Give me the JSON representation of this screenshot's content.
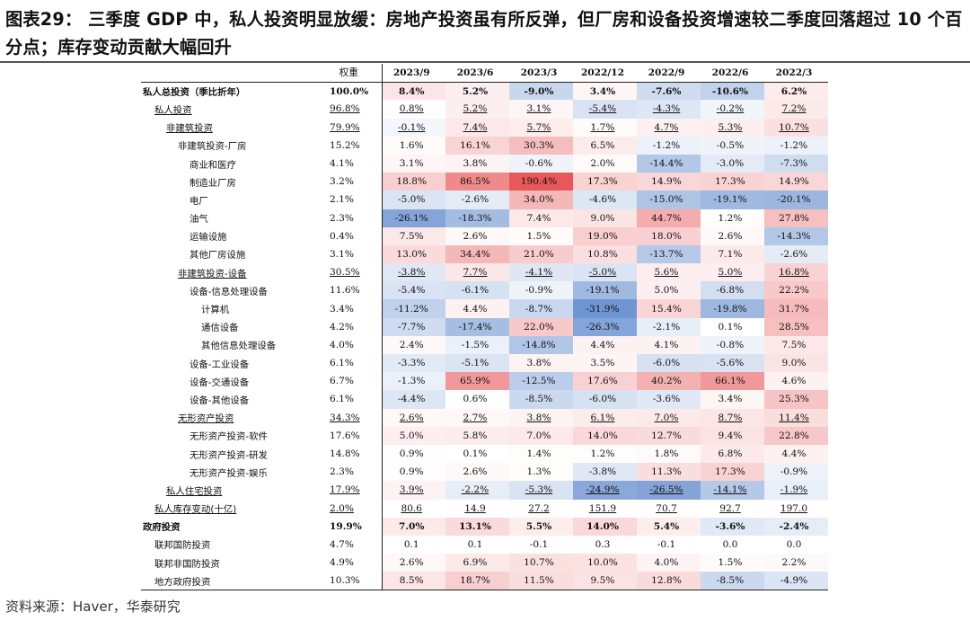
{
  "title": "图表29：  三季度 GDP 中，私人投资明显放缓：房地产投资虽有所反弹，但厂房和设备投资增速较二季度回落超过 10 个百分点；库存变动贡献大幅回升",
  "source": "资料来源：Haver，华泰研究",
  "table": {
    "columns": [
      "",
      "权重",
      "2023/9",
      "2023/6",
      "2023/3",
      "2022/12",
      "2022/9",
      "2022/6",
      "2022/3"
    ],
    "colors": {
      "neg_strong": "#6f95d2",
      "pos_strong": "#e8585a",
      "neutral": "#ffffff"
    },
    "rows": [
      {
        "label": "私人总投资（季比折年）",
        "indent": 0,
        "bold": true,
        "ul": false,
        "weight": "100.0%",
        "values": [
          "8.4%",
          "5.2%",
          "-9.0%",
          "3.4%",
          "-7.6%",
          "-10.6%",
          "6.2%"
        ]
      },
      {
        "label": "私人投资",
        "indent": 1,
        "bold": false,
        "ul": true,
        "weight": "96.8%",
        "values": [
          "0.8%",
          "5.2%",
          "3.1%",
          "-5.4%",
          "-4.3%",
          "-0.2%",
          "7.2%"
        ]
      },
      {
        "label": "非建筑投资",
        "indent": 2,
        "bold": false,
        "ul": true,
        "weight": "79.9%",
        "values": [
          "-0.1%",
          "7.4%",
          "5.7%",
          "1.7%",
          "4.7%",
          "5.3%",
          "10.7%"
        ]
      },
      {
        "label": "非建筑投资-厂房",
        "indent": 3,
        "bold": false,
        "ul": false,
        "weight": "15.2%",
        "values": [
          "1.6%",
          "16.1%",
          "30.3%",
          "6.5%",
          "-1.2%",
          "-0.5%",
          "-1.2%"
        ]
      },
      {
        "label": "商业和医疗",
        "indent": 4,
        "bold": false,
        "ul": false,
        "weight": "4.1%",
        "values": [
          "3.1%",
          "3.8%",
          "-0.6%",
          "2.0%",
          "-14.4%",
          "-3.0%",
          "-7.3%"
        ]
      },
      {
        "label": "制造业厂房",
        "indent": 4,
        "bold": false,
        "ul": false,
        "weight": "3.2%",
        "values": [
          "18.8%",
          "86.5%",
          "190.4%",
          "17.3%",
          "14.9%",
          "17.3%",
          "14.9%"
        ]
      },
      {
        "label": "电厂",
        "indent": 4,
        "bold": false,
        "ul": false,
        "weight": "2.1%",
        "values": [
          "-5.0%",
          "-2.6%",
          "34.0%",
          "-4.6%",
          "-15.0%",
          "-19.1%",
          "-20.1%"
        ]
      },
      {
        "label": "油气",
        "indent": 4,
        "bold": false,
        "ul": false,
        "weight": "2.3%",
        "values": [
          "-26.1%",
          "-18.3%",
          "7.4%",
          "9.0%",
          "44.7%",
          "1.2%",
          "27.8%"
        ]
      },
      {
        "label": "运输设施",
        "indent": 4,
        "bold": false,
        "ul": false,
        "weight": "0.4%",
        "values": [
          "7.5%",
          "2.6%",
          "1.5%",
          "19.0%",
          "18.0%",
          "2.6%",
          "-14.3%"
        ]
      },
      {
        "label": "其他厂房设施",
        "indent": 4,
        "bold": false,
        "ul": false,
        "weight": "3.1%",
        "values": [
          "13.0%",
          "34.4%",
          "21.0%",
          "10.8%",
          "-13.7%",
          "7.1%",
          "-2.6%"
        ]
      },
      {
        "label": "非建筑投资-设备",
        "indent": 3,
        "bold": false,
        "ul": true,
        "weight": "30.5%",
        "values": [
          "-3.8%",
          "7.7%",
          "-4.1%",
          "-5.0%",
          "5.6%",
          "5.0%",
          "16.8%"
        ]
      },
      {
        "label": "设备-信息处理设备",
        "indent": 4,
        "bold": false,
        "ul": false,
        "weight": "11.6%",
        "values": [
          "-5.4%",
          "-6.1%",
          "-0.9%",
          "-19.1%",
          "5.0%",
          "-6.8%",
          "22.2%"
        ]
      },
      {
        "label": "计算机",
        "indent": 5,
        "bold": false,
        "ul": false,
        "weight": "3.4%",
        "values": [
          "-11.2%",
          "4.4%",
          "-8.7%",
          "-31.9%",
          "15.4%",
          "-19.8%",
          "31.7%"
        ]
      },
      {
        "label": "通信设备",
        "indent": 5,
        "bold": false,
        "ul": false,
        "weight": "4.2%",
        "values": [
          "-7.7%",
          "-17.4%",
          "22.0%",
          "-26.3%",
          "-2.1%",
          "0.1%",
          "28.5%"
        ]
      },
      {
        "label": "其他信息处理设备",
        "indent": 5,
        "bold": false,
        "ul": false,
        "weight": "4.0%",
        "values": [
          "2.4%",
          "-1.5%",
          "-14.8%",
          "4.4%",
          "4.1%",
          "-0.8%",
          "7.5%"
        ]
      },
      {
        "label": "设备-工业设备",
        "indent": 4,
        "bold": false,
        "ul": false,
        "weight": "6.1%",
        "values": [
          "-3.3%",
          "-5.1%",
          "3.8%",
          "3.5%",
          "-6.0%",
          "-5.6%",
          "9.0%"
        ]
      },
      {
        "label": "设备-交通设备",
        "indent": 4,
        "bold": false,
        "ul": false,
        "weight": "6.7%",
        "values": [
          "-1.3%",
          "65.9%",
          "-12.5%",
          "17.6%",
          "40.2%",
          "66.1%",
          "4.6%"
        ]
      },
      {
        "label": "设备-其他设备",
        "indent": 4,
        "bold": false,
        "ul": false,
        "weight": "6.1%",
        "values": [
          "-4.4%",
          "0.6%",
          "-8.5%",
          "-6.0%",
          "-3.6%",
          "3.4%",
          "25.3%"
        ]
      },
      {
        "label": "无形资产投资",
        "indent": 3,
        "bold": false,
        "ul": true,
        "weight": "34.3%",
        "values": [
          "2.6%",
          "2.7%",
          "3.8%",
          "6.1%",
          "7.0%",
          "8.7%",
          "11.4%"
        ]
      },
      {
        "label": "无形资产投资-软件",
        "indent": 4,
        "bold": false,
        "ul": false,
        "weight": "17.6%",
        "values": [
          "5.0%",
          "5.8%",
          "7.0%",
          "14.0%",
          "12.7%",
          "9.4%",
          "22.8%"
        ]
      },
      {
        "label": "无形资产投资-研发",
        "indent": 4,
        "bold": false,
        "ul": false,
        "weight": "14.8%",
        "values": [
          "0.9%",
          "0.1%",
          "1.4%",
          "1.2%",
          "1.8%",
          "6.8%",
          "4.4%"
        ]
      },
      {
        "label": "无形资产投资-娱乐",
        "indent": 4,
        "bold": false,
        "ul": false,
        "weight": "2.3%",
        "values": [
          "0.9%",
          "2.6%",
          "1.3%",
          "-3.8%",
          "11.3%",
          "17.3%",
          "-0.9%"
        ]
      },
      {
        "label": "私人住宅投资",
        "indent": 2,
        "bold": false,
        "ul": true,
        "weight": "17.9%",
        "values": [
          "3.9%",
          "-2.2%",
          "-5.3%",
          "-24.9%",
          "-26.5%",
          "-14.1%",
          "-1.9%"
        ]
      },
      {
        "label": "私人库存变动(十亿)",
        "indent": 1,
        "bold": false,
        "ul": true,
        "weight": "2.0%",
        "values": [
          "80.6",
          "14.9",
          "27.2",
          "151.9",
          "70.7",
          "92.7",
          "197.0"
        ],
        "nocolor": true
      },
      {
        "label": "政府投资",
        "indent": 0,
        "bold": true,
        "ul": false,
        "weight": "19.9%",
        "values": [
          "7.0%",
          "13.1%",
          "5.5%",
          "14.0%",
          "5.4%",
          "-3.6%",
          "-2.4%"
        ]
      },
      {
        "label": "联邦国防投资",
        "indent": 1,
        "bold": false,
        "ul": false,
        "weight": "4.7%",
        "values": [
          "0.1",
          "0.1",
          "-0.1",
          "0.3",
          "-0.1",
          "0.0",
          "0.0"
        ],
        "nocolor": true
      },
      {
        "label": "联邦非国防投资",
        "indent": 1,
        "bold": false,
        "ul": false,
        "weight": "4.9%",
        "values": [
          "2.6%",
          "6.9%",
          "10.7%",
          "10.0%",
          "4.0%",
          "1.5%",
          "2.2%"
        ]
      },
      {
        "label": "地方政府投资",
        "indent": 1,
        "bold": false,
        "ul": false,
        "weight": "10.3%",
        "values": [
          "8.5%",
          "18.7%",
          "11.5%",
          "9.5%",
          "12.8%",
          "-8.5%",
          "-4.9%"
        ]
      }
    ]
  }
}
